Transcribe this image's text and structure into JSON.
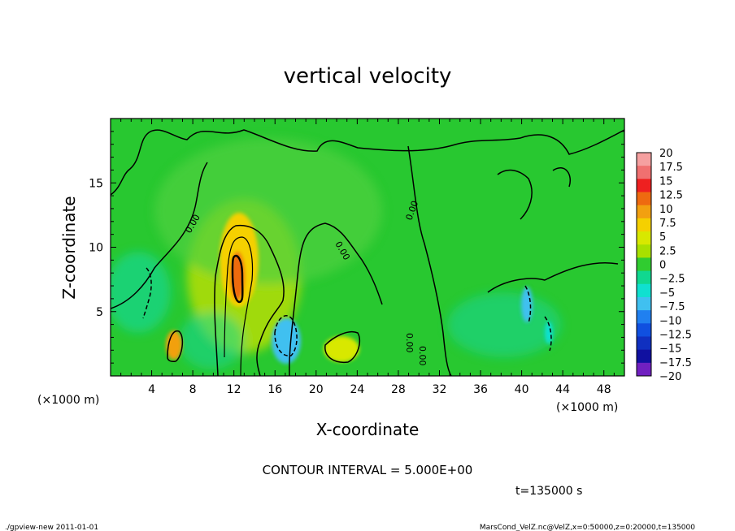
{
  "chart_data": {
    "type": "heatmap",
    "title": "vertical velocity",
    "xlabel": "X-coordinate",
    "ylabel": "Z-coordinate",
    "x_unit": "(×1000 m)",
    "y_unit": "(×1000 m)",
    "xlim": [
      0,
      50
    ],
    "ylim": [
      0,
      20
    ],
    "x_ticks": [
      "4",
      "8",
      "12",
      "16",
      "20",
      "24",
      "28",
      "32",
      "36",
      "40",
      "44",
      "48"
    ],
    "y_ticks": [
      "5",
      "10",
      "15"
    ],
    "colorbar_labels": [
      "20",
      "17.5",
      "15",
      "12.5",
      "10",
      "7.5",
      "5",
      "2.5",
      "0",
      "−2.5",
      "−5",
      "−7.5",
      "−10",
      "−12.5",
      "−15",
      "−17.5",
      "−20"
    ],
    "colorbar_colors": [
      "#f5a0a0",
      "#f07070",
      "#ee2020",
      "#ee6a10",
      "#f2a010",
      "#f5d000",
      "#d8e800",
      "#a8e000",
      "#30cc30",
      "#10d890",
      "#10e0d0",
      "#40c0f0",
      "#2080f0",
      "#1050e0",
      "#1030c0",
      "#1010a0",
      "#7020c0"
    ],
    "contour_interval_text": "CONTOUR INTERVAL = 5.000E+00",
    "contour_labels": [
      "0.00",
      "0.00",
      "0.00",
      "0.00",
      "0.00"
    ],
    "time_text": "t=135000 s",
    "fields": [
      {
        "x": 12.5,
        "z": 8.0,
        "value": 12.5
      },
      {
        "x": 12.5,
        "z": 9.5,
        "value": 7.5
      },
      {
        "x": 6.5,
        "z": 2.5,
        "value": 7.5
      },
      {
        "x": 23.5,
        "z": 2.3,
        "value": 5
      },
      {
        "x": 17.2,
        "z": 2.5,
        "value": -7.5
      },
      {
        "x": 40.5,
        "z": 5.5,
        "value": -5
      },
      {
        "x": 4.0,
        "z": 7.0,
        "value": -2.5
      },
      {
        "x": 42.0,
        "z": 3.5,
        "value": -5
      }
    ]
  },
  "footer": {
    "left": "./gpview-new   2011-01-01",
    "right": "MarsCond_VelZ.nc@VelZ,x=0:50000,z=0:20000,t=135000"
  }
}
